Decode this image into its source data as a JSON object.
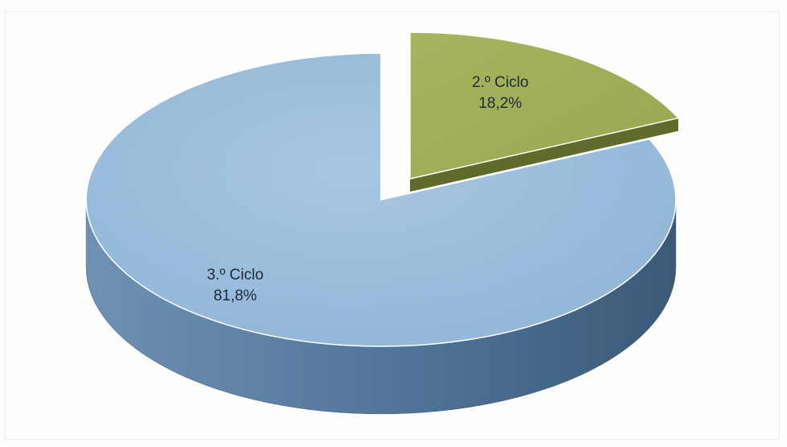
{
  "chart_data": {
    "type": "pie",
    "style": "3d-exploded",
    "title": "",
    "legend": "none",
    "slices": [
      {
        "category": "3.º Ciclo",
        "value": 81.8,
        "label_name": "3.º Ciclo",
        "label_pct": "81,8%",
        "color": "#99bedc"
      },
      {
        "category": "2.º Ciclo",
        "value": 18.2,
        "label_name": "2.º Ciclo",
        "label_pct": "18,2%",
        "color": "#a2b05a"
      }
    ]
  }
}
